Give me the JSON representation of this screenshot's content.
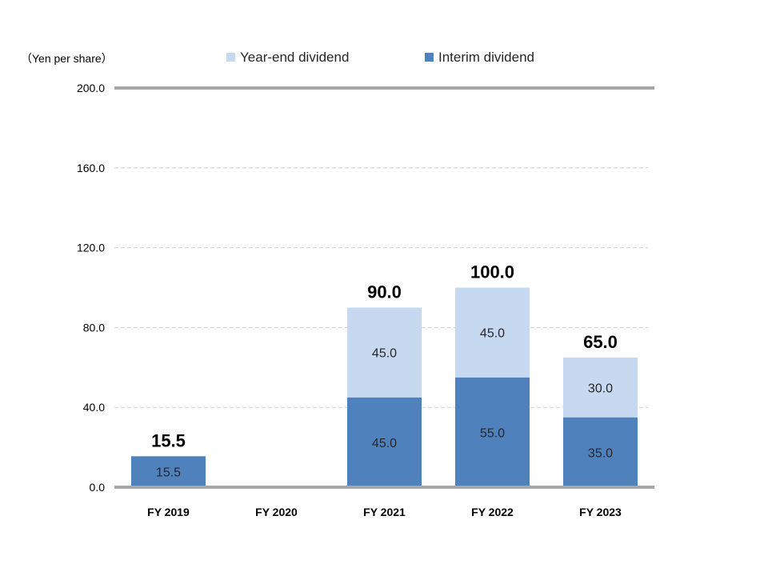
{
  "chart_data": {
    "type": "bar",
    "stacked": true,
    "title": "",
    "unit_label": "（Yen per share）",
    "xlabel": "",
    "ylabel": "",
    "ylim": [
      0,
      200
    ],
    "yticks": [
      0,
      40,
      80,
      120,
      160,
      200
    ],
    "ytick_labels": [
      "0.0",
      "40.0",
      "80.0",
      "120.0",
      "160.0",
      "200.0"
    ],
    "grid": true,
    "legend_position": "top",
    "categories": [
      "FY 2019",
      "FY 2020",
      "FY 2021",
      "FY 2022",
      "FY 2023"
    ],
    "series": [
      {
        "name": "Interim dividend",
        "color": "#4f81bd",
        "values": [
          15.5,
          null,
          45,
          55,
          35
        ],
        "labels": [
          "15.5",
          "",
          "45.0",
          "55.0",
          "35.0"
        ]
      },
      {
        "name": "Year-end dividend",
        "color": "#c6d9f1",
        "values": [
          null,
          null,
          45,
          45,
          30
        ],
        "labels": [
          "",
          "",
          "45.0",
          "45.0",
          "30.0"
        ]
      }
    ],
    "totals": [
      15.5,
      null,
      90,
      100,
      65
    ],
    "total_labels": [
      "15.5",
      "",
      "90.0",
      "100.0",
      "65.0"
    ],
    "legend_order": [
      "Year-end dividend",
      "Interim dividend"
    ]
  }
}
